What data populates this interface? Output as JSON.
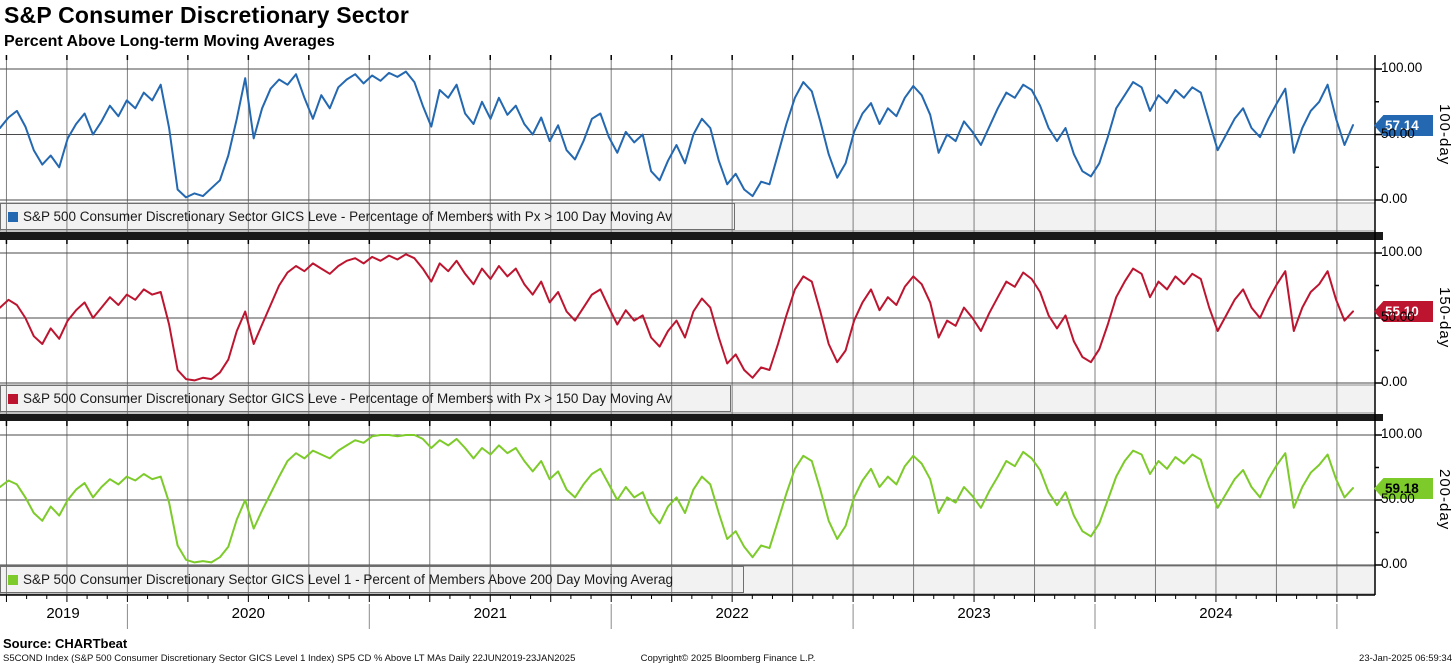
{
  "header": {
    "title": "S&P Consumer Discretionary Sector",
    "subtitle": "Percent Above Long-term Moving Averages"
  },
  "chart_data": {
    "type": "line",
    "x_axis": {
      "years": [
        "2019",
        "2020",
        "2021",
        "2022",
        "2023",
        "2024"
      ],
      "range_note": "22JUN2019-23JAN2025",
      "gridlines": "quarterly vertical, monthly minor ticks"
    },
    "ylim": [
      0,
      100
    ],
    "y_tick_labels": [
      "100.00",
      "50.00",
      "0.00"
    ],
    "panels": [
      {
        "side_label": "100-day",
        "legend": "S&P 500 Consumer Discretionary Sector GICS Leve - Percentage of Members with Px > 100 Day Moving Av",
        "color": "#2368b0",
        "tag_text_color": "#ffffff",
        "last_value": 57.14,
        "last_value_label": "57.14",
        "values": [
          55,
          63,
          68,
          56,
          38,
          27,
          34,
          25,
          47,
          58,
          66,
          50,
          60,
          72,
          64,
          76,
          70,
          82,
          76,
          88,
          55,
          8,
          2,
          5,
          3,
          9,
          15,
          34,
          62,
          93,
          47,
          70,
          85,
          92,
          88,
          96,
          78,
          62,
          80,
          70,
          86,
          92,
          96,
          89,
          95,
          91,
          97,
          94,
          98,
          90,
          72,
          56,
          84,
          78,
          88,
          66,
          58,
          75,
          62,
          78,
          65,
          72,
          58,
          50,
          63,
          45,
          57,
          38,
          31,
          45,
          62,
          66,
          48,
          36,
          52,
          44,
          50,
          22,
          15,
          30,
          42,
          28,
          50,
          62,
          55,
          30,
          12,
          20,
          8,
          3,
          14,
          12,
          35,
          58,
          78,
          90,
          83,
          60,
          35,
          17,
          28,
          52,
          66,
          74,
          58,
          70,
          64,
          78,
          87,
          80,
          65,
          36,
          50,
          45,
          60,
          52,
          42,
          56,
          70,
          82,
          78,
          88,
          84,
          72,
          55,
          45,
          55,
          35,
          22,
          18,
          28,
          48,
          70,
          80,
          90,
          86,
          68,
          80,
          74,
          84,
          78,
          86,
          82,
          60,
          38,
          50,
          62,
          70,
          55,
          48,
          62,
          74,
          85,
          36,
          55,
          68,
          75,
          88,
          62,
          42,
          57.14
        ]
      },
      {
        "side_label": "150-day",
        "legend": "S&P 500 Consumer Discretionary Sector GICS Leve - Percentage of Members with Px > 150 Day Moving Av",
        "color": "#bd1530",
        "tag_text_color": "#ffffff",
        "last_value": 55.1,
        "last_value_label": "55.10",
        "values": [
          58,
          64,
          60,
          50,
          36,
          30,
          42,
          34,
          48,
          56,
          62,
          50,
          58,
          66,
          60,
          68,
          64,
          72,
          68,
          70,
          45,
          10,
          3,
          2,
          4,
          3,
          8,
          18,
          40,
          55,
          30,
          45,
          60,
          75,
          85,
          90,
          86,
          92,
          88,
          84,
          90,
          94,
          96,
          92,
          97,
          94,
          98,
          95,
          99,
          96,
          88,
          78,
          92,
          86,
          94,
          84,
          76,
          88,
          80,
          90,
          82,
          88,
          76,
          68,
          78,
          62,
          70,
          55,
          48,
          58,
          68,
          72,
          58,
          45,
          56,
          48,
          52,
          35,
          28,
          40,
          48,
          35,
          55,
          65,
          58,
          35,
          15,
          22,
          10,
          4,
          12,
          10,
          30,
          52,
          72,
          82,
          78,
          55,
          30,
          16,
          25,
          48,
          62,
          72,
          56,
          66,
          60,
          74,
          82,
          76,
          62,
          35,
          48,
          44,
          58,
          50,
          40,
          54,
          66,
          78,
          74,
          85,
          80,
          70,
          52,
          42,
          52,
          32,
          20,
          16,
          26,
          45,
          66,
          78,
          88,
          84,
          66,
          78,
          72,
          82,
          76,
          84,
          80,
          58,
          40,
          52,
          64,
          72,
          58,
          50,
          64,
          76,
          86,
          40,
          58,
          70,
          76,
          86,
          64,
          48,
          55.1
        ]
      },
      {
        "side_label": "200-day",
        "legend": "S&P 500 Consumer Discretionary Sector GICS Level 1 - Percent of Members Above 200 Day Moving Averag",
        "color": "#7dcb2a",
        "tag_text_color": "#000000",
        "last_value": 59.18,
        "last_value_label": "59.18",
        "values": [
          60,
          65,
          62,
          52,
          40,
          34,
          45,
          38,
          50,
          58,
          63,
          52,
          60,
          66,
          62,
          68,
          65,
          70,
          66,
          68,
          48,
          15,
          4,
          2,
          3,
          2,
          6,
          14,
          35,
          50,
          28,
          42,
          55,
          68,
          80,
          86,
          82,
          88,
          85,
          82,
          88,
          92,
          96,
          94,
          99,
          100,
          100,
          99,
          100,
          100,
          97,
          90,
          96,
          92,
          97,
          90,
          82,
          90,
          85,
          92,
          86,
          90,
          80,
          72,
          80,
          66,
          72,
          58,
          52,
          62,
          70,
          74,
          62,
          50,
          60,
          52,
          56,
          40,
          32,
          45,
          52,
          40,
          58,
          68,
          62,
          40,
          20,
          26,
          14,
          6,
          15,
          13,
          34,
          55,
          74,
          84,
          80,
          58,
          34,
          20,
          30,
          52,
          65,
          74,
          60,
          68,
          62,
          76,
          84,
          78,
          66,
          40,
          52,
          48,
          60,
          53,
          44,
          57,
          68,
          80,
          76,
          87,
          82,
          73,
          56,
          46,
          56,
          38,
          26,
          22,
          32,
          50,
          68,
          80,
          88,
          85,
          70,
          80,
          74,
          83,
          78,
          85,
          81,
          60,
          44,
          55,
          66,
          73,
          60,
          52,
          66,
          77,
          86,
          44,
          60,
          71,
          77,
          85,
          66,
          52,
          59.18
        ]
      }
    ]
  },
  "footer": {
    "source": "Source: CHARTbeat",
    "ticker_line": "S5COND Index (S&P 500 Consumer Discretionary Sector GICS Level 1 Index) SP5 CD % Above LT MAs  Daily 22JUN2019-23JAN2025",
    "copyright": "Copyright© 2025 Bloomberg Finance L.P.",
    "timestamp": "23-Jan-2025 06:59:34"
  },
  "colors": {
    "grid_vertical": "#7f7f7f",
    "grid_horizontal": "#4a4a4a",
    "separator": "#1a1a1a",
    "legend_band": "#f2f2f2",
    "axis": "#000000"
  }
}
